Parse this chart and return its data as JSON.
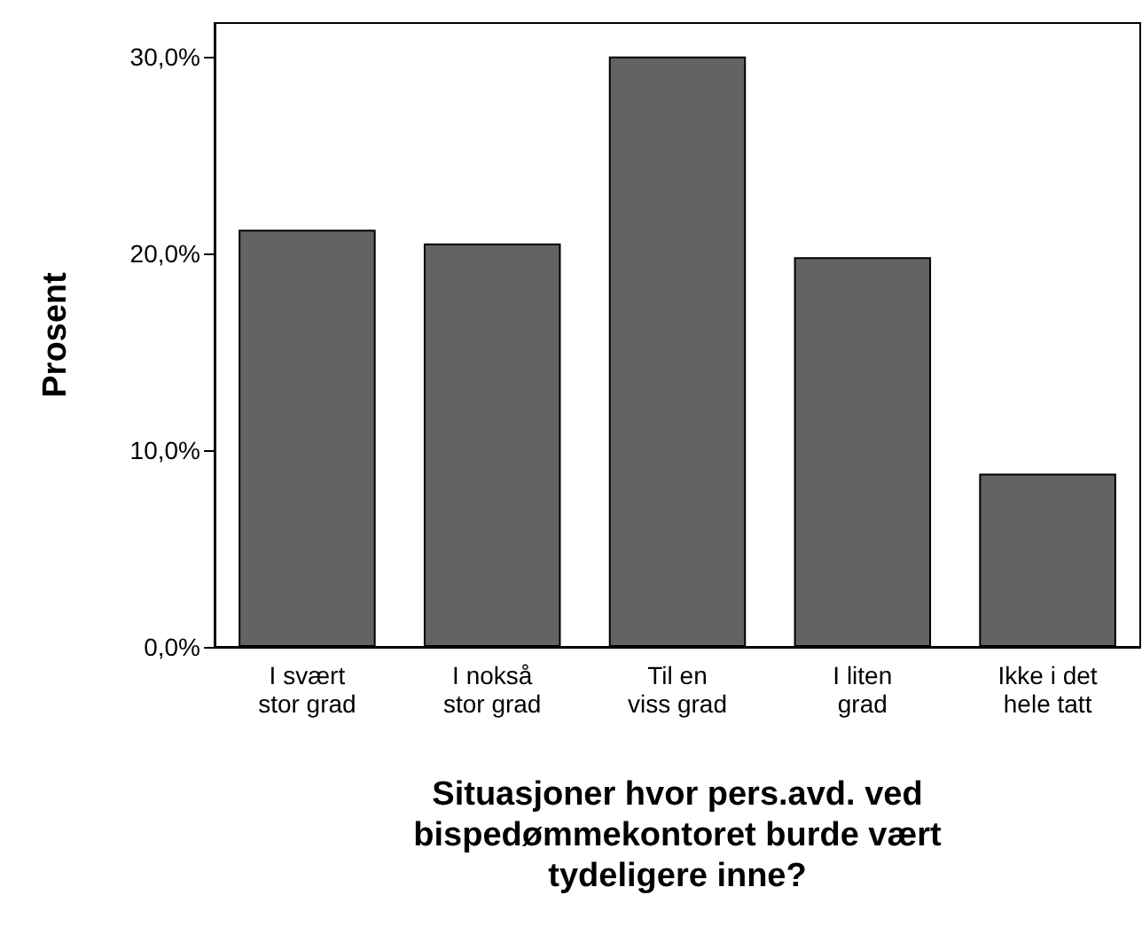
{
  "chart_data": {
    "type": "bar",
    "xlabel": "Situasjoner hvor pers.avd. ved\nbispedømmekontoret burde vært\ntydeligere inne?",
    "ylabel": "Prosent",
    "categories": [
      "I svært\nstor grad",
      "I nokså\nstor grad",
      "Til en\nviss grad",
      "I liten\ngrad",
      "Ikke i det\nhele tatt"
    ],
    "values": [
      21.2,
      20.5,
      30.0,
      19.8,
      8.8
    ],
    "color": "#636363",
    "ylim": [
      0,
      31.7
    ],
    "yticks": [
      {
        "value": 0,
        "label": "0,0%"
      },
      {
        "value": 10,
        "label": "10,0%"
      },
      {
        "value": 20,
        "label": "20,0%"
      },
      {
        "value": 30,
        "label": "30,0%"
      }
    ],
    "grid": false
  }
}
